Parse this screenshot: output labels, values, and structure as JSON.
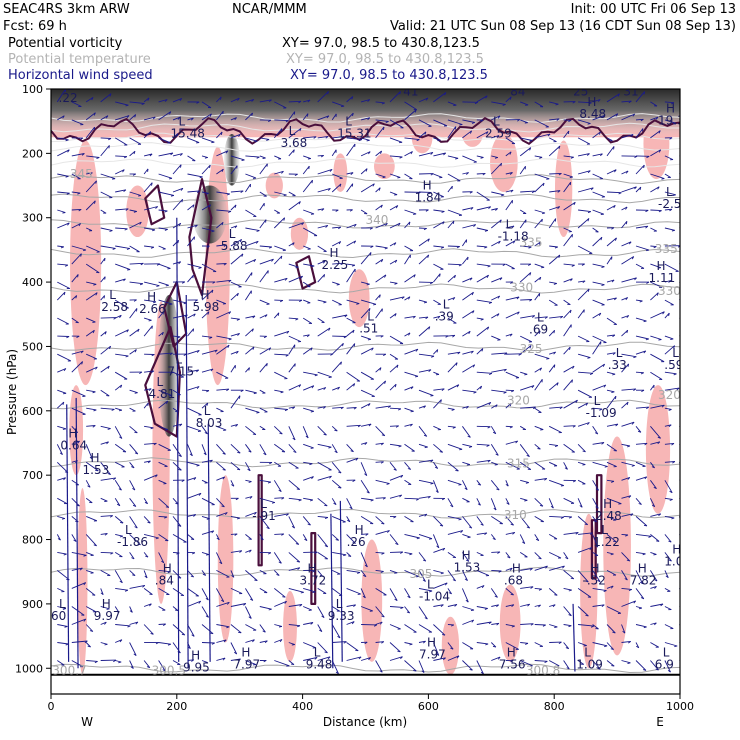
{
  "header": {
    "left_line1": "SEAC4RS  3km ARW",
    "left_line2": "Fcst:   69 h",
    "center": "NCAR/MMM",
    "init": "Init: 00 UTC Fri 06 Sep 13",
    "valid": "Valid: 21 UTC Sun 08 Sep 13 (16 CDT Sun 08 Sep 13)"
  },
  "fields": [
    {
      "name": "Potential vorticity",
      "xy": "XY=  97.0, 98.5 to 430.8,123.5",
      "color": "#000000"
    },
    {
      "name": "Potential temperature",
      "xy": "XY=  97.0, 98.5 to 430.8,123.5",
      "color": "#b4b4b4"
    },
    {
      "name": "Horizontal wind speed",
      "xy": "XY=  97.0, 98.5 to 430.8,123.5",
      "color": "#1a1a8a"
    }
  ],
  "colors": {
    "pv_fill": "#f7b6b6",
    "pv_contour": "#4a0f3c",
    "wind_barb": "#1a1a8a",
    "theta": "#a8a8a8",
    "shading_dark": "#3c3c3c"
  },
  "chart_data": {
    "type": "cross-section",
    "xlabel": "Distance (km)",
    "ylabel": "Pressure (hPa)",
    "xlim": [
      0,
      1000
    ],
    "ylim": [
      1040,
      100
    ],
    "x_ticks": [
      "0",
      "200",
      "400",
      "600",
      "800",
      "1000"
    ],
    "y_ticks": [
      "100",
      "200",
      "300",
      "400",
      "500",
      "600",
      "700",
      "800",
      "900",
      "1000"
    ],
    "x_tick_values": [
      0,
      200,
      400,
      600,
      800,
      1000
    ],
    "y_tick_values": [
      100,
      200,
      300,
      400,
      500,
      600,
      700,
      800,
      900,
      1000
    ],
    "direction_left": "W",
    "direction_right": "E",
    "theta_contours": [
      {
        "label": "330",
        "p": 410
      },
      {
        "label": "325",
        "p": 500
      },
      {
        "label": "320",
        "p": 590
      },
      {
        "label": "315",
        "p": 680
      },
      {
        "label": "310",
        "p": 760
      },
      {
        "label": "305",
        "p": 850
      },
      {
        "label": "300",
        "p": 1000
      }
    ],
    "theta_labels": [
      {
        "text": "345",
        "x": 30,
        "p": 238
      },
      {
        "text": "340",
        "x": 500,
        "p": 310
      },
      {
        "text": "335",
        "x": 745,
        "p": 345
      },
      {
        "text": "335",
        "x": 960,
        "p": 355
      },
      {
        "text": "330",
        "x": 730,
        "p": 415
      },
      {
        "text": "330",
        "x": 965,
        "p": 420
      },
      {
        "text": "325",
        "x": 745,
        "p": 510
      },
      {
        "text": "320",
        "x": 725,
        "p": 590
      },
      {
        "text": "320",
        "x": 965,
        "p": 582
      },
      {
        "text": "315",
        "x": 725,
        "p": 688
      },
      {
        "text": "310",
        "x": 720,
        "p": 768
      },
      {
        "text": "305",
        "x": 570,
        "p": 860
      },
      {
        "text": "300.7",
        "x": 2,
        "p": 1010
      },
      {
        "text": "300.5",
        "x": 160,
        "p": 1010
      },
      {
        "text": "300.8",
        "x": 755,
        "p": 1010
      }
    ],
    "hl_labels": [
      {
        "letter": "L",
        "value": ".22",
        "x": 12,
        "p": 120
      },
      {
        "letter": "L",
        "value": "15.48",
        "x": 190,
        "p": 175
      },
      {
        "letter": "L",
        "value": "3.68",
        "x": 365,
        "p": 190
      },
      {
        "letter": "L",
        "value": "15.31",
        "x": 455,
        "p": 175
      },
      {
        "letter": "L",
        "value": "2.59",
        "x": 690,
        "p": 175
      },
      {
        "letter": "H",
        "value": "8.48",
        "x": 840,
        "p": 145
      },
      {
        "letter": "H",
        "value": "19.3",
        "x": 965,
        "p": 155
      },
      {
        "letter": "H",
        "value": "1.84",
        "x": 578,
        "p": 275
      },
      {
        "letter": "L",
        "value": "-2.56",
        "x": 965,
        "p": 285
      },
      {
        "letter": "L",
        "value": "5.88",
        "x": 270,
        "p": 350
      },
      {
        "letter": "L",
        "value": "-1.18",
        "x": 710,
        "p": 335
      },
      {
        "letter": "H",
        "value": "2.25",
        "x": 430,
        "p": 380
      },
      {
        "letter": "H",
        "value": "1.11",
        "x": 950,
        "p": 400
      },
      {
        "letter": "L",
        "value": "2.58",
        "x": 80,
        "p": 445
      },
      {
        "letter": "H",
        "value": "2.66",
        "x": 140,
        "p": 448
      },
      {
        "letter": "H",
        "value": "5.98",
        "x": 225,
        "p": 445
      },
      {
        "letter": "L",
        "value": ".51",
        "x": 490,
        "p": 478
      },
      {
        "letter": "L",
        "value": ".39",
        "x": 610,
        "p": 460
      },
      {
        "letter": "L",
        "value": ".69",
        "x": 760,
        "p": 480
      },
      {
        "letter": "L",
        "value": "7.15",
        "x": 185,
        "p": 545
      },
      {
        "letter": "L",
        "value": ".33",
        "x": 885,
        "p": 535
      },
      {
        "letter": "L",
        "value": ".59",
        "x": 975,
        "p": 535
      },
      {
        "letter": "L",
        "value": "4.81",
        "x": 155,
        "p": 580
      },
      {
        "letter": "L",
        "value": "8.03",
        "x": 230,
        "p": 625
      },
      {
        "letter": "L",
        "value": "-1.09",
        "x": 850,
        "p": 610
      },
      {
        "letter": "H",
        "value": "0.64",
        "x": 15,
        "p": 660
      },
      {
        "letter": "H",
        "value": "1.53",
        "x": 50,
        "p": 698
      },
      {
        "letter": "L",
        "value": "-.91",
        "x": 320,
        "p": 770
      },
      {
        "letter": "H",
        "value": "2.48",
        "x": 865,
        "p": 770
      },
      {
        "letter": "L",
        "value": "-1.86",
        "x": 105,
        "p": 810
      },
      {
        "letter": "H",
        "value": ".26",
        "x": 470,
        "p": 810
      },
      {
        "letter": "L",
        "value": "1.22",
        "x": 862,
        "p": 810
      },
      {
        "letter": "H",
        "value": "1.02",
        "x": 975,
        "p": 840
      },
      {
        "letter": "H",
        "value": "1.53",
        "x": 640,
        "p": 850
      },
      {
        "letter": "H",
        "value": ".84",
        "x": 165,
        "p": 870
      },
      {
        "letter": "H",
        "value": "3.72",
        "x": 395,
        "p": 870
      },
      {
        "letter": "H",
        "value": ".68",
        "x": 720,
        "p": 870
      },
      {
        "letter": "H",
        "value": "-.52",
        "x": 845,
        "p": 870
      },
      {
        "letter": "H",
        "value": "7.82",
        "x": 920,
        "p": 870
      },
      {
        "letter": "L",
        "value": "-1.04",
        "x": 585,
        "p": 895
      },
      {
        "letter": "L",
        "value": "9.33",
        "x": 440,
        "p": 925
      },
      {
        "letter": "L",
        "value": "60",
        "x": 0,
        "p": 925
      },
      {
        "letter": "H",
        "value": "9.97",
        "x": 68,
        "p": 925
      },
      {
        "letter": "H",
        "value": "7.97",
        "x": 585,
        "p": 985
      },
      {
        "letter": "H",
        "value": "9.95",
        "x": 210,
        "p": 1005
      },
      {
        "letter": "H",
        "value": "7.97",
        "x": 290,
        "p": 1000
      },
      {
        "letter": "L",
        "value": "9.48",
        "x": 405,
        "p": 1000
      },
      {
        "letter": "H",
        "value": "7.56",
        "x": 712,
        "p": 1000
      },
      {
        "letter": "L",
        "value": "1.09",
        "x": 835,
        "p": 1000
      },
      {
        "letter": "L",
        "value": "6.9",
        "x": 960,
        "p": 1000
      },
      {
        "letter": "H",
        "value": "41",
        "x": 560,
        "p": 110
      },
      {
        "letter": "L",
        "value": "84",
        "x": 730,
        "p": 110
      },
      {
        "letter": "L",
        "value": "25",
        "x": 830,
        "p": 110
      },
      {
        "letter": "L",
        "value": "31",
        "x": 910,
        "p": 110
      }
    ]
  }
}
